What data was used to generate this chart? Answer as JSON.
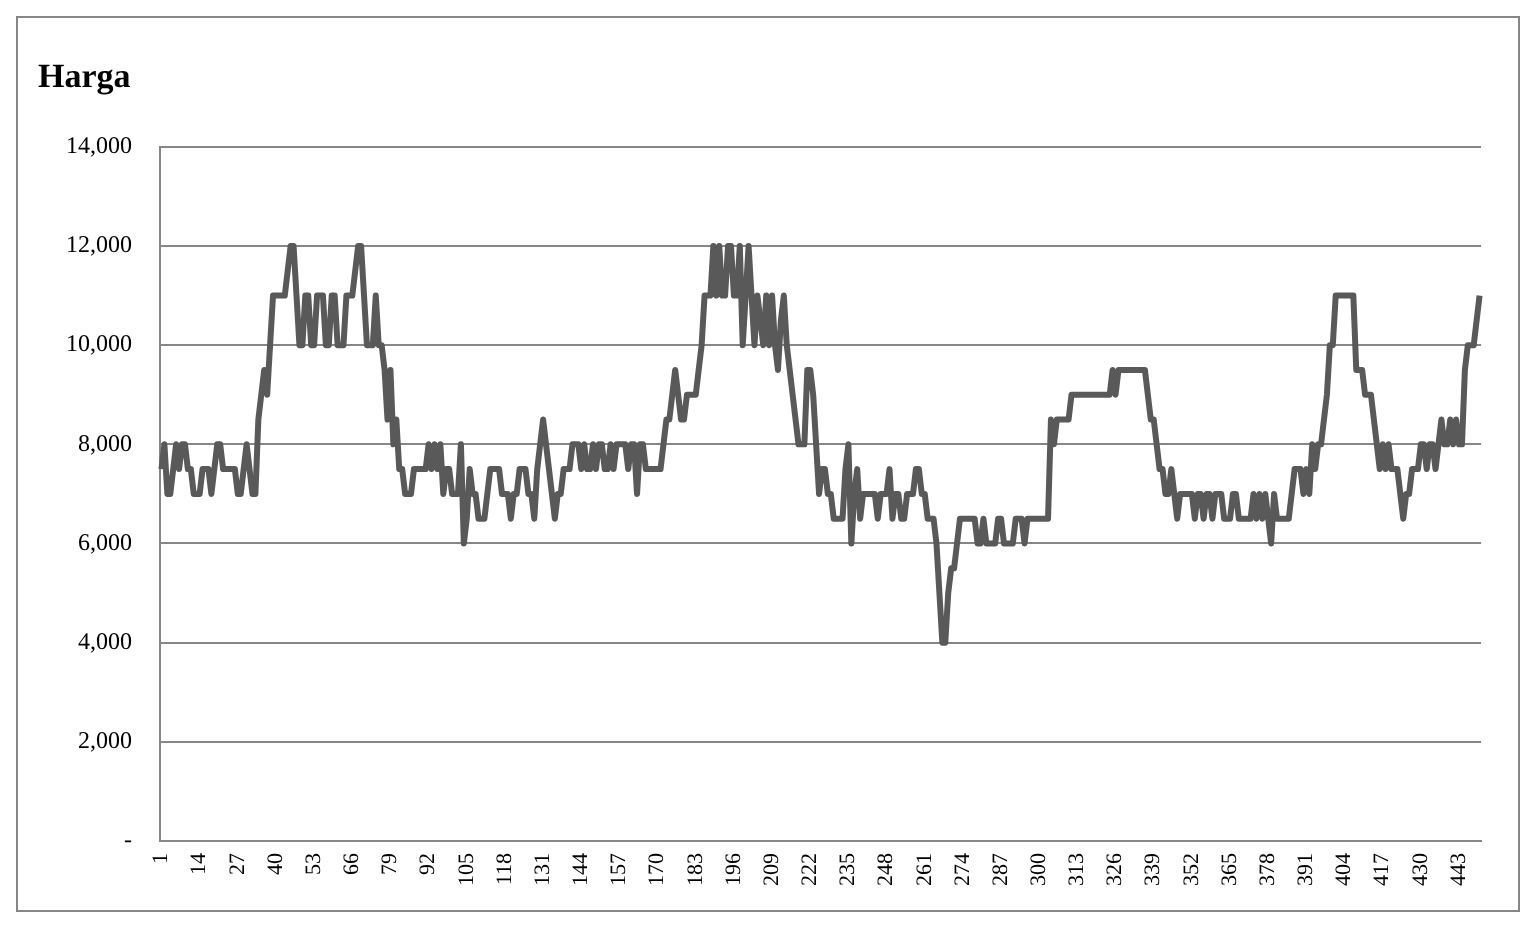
{
  "chart_data": {
    "type": "line",
    "title": "Harga",
    "categories": [
      "1",
      null,
      null,
      null,
      null,
      null,
      null,
      null,
      null,
      null,
      null,
      null,
      null,
      "14",
      null,
      null,
      null,
      null,
      null,
      null,
      null,
      null,
      null,
      null,
      null,
      null,
      "27",
      null,
      null,
      null,
      null,
      null,
      null,
      null,
      null,
      null,
      null,
      null,
      null,
      "40",
      null,
      null,
      null,
      null,
      null,
      null,
      null,
      null,
      null,
      null,
      null,
      null,
      "53",
      null,
      null,
      null,
      null,
      null,
      null,
      null,
      null,
      null,
      null,
      null,
      null,
      "66",
      null,
      null,
      null,
      null,
      null,
      null,
      null,
      null,
      null,
      null,
      null,
      null,
      "79",
      null,
      null,
      null,
      null,
      null,
      null,
      null,
      null,
      null,
      null,
      null,
      null,
      "92",
      null,
      null,
      null,
      null,
      null,
      null,
      null,
      null,
      null,
      null,
      null,
      null,
      "105",
      null,
      null,
      null,
      null,
      null,
      null,
      null,
      null,
      null,
      null,
      null,
      null,
      "118",
      null,
      null,
      null,
      null,
      null,
      null,
      null,
      null,
      null,
      null,
      null,
      null,
      "131",
      null,
      null,
      null,
      null,
      null,
      null,
      null,
      null,
      null,
      null,
      null,
      null,
      "144",
      null,
      null,
      null,
      null,
      null,
      null,
      null,
      null,
      null,
      null,
      null,
      null,
      "157",
      null,
      null,
      null,
      null,
      null,
      null,
      null,
      null,
      null,
      null,
      null,
      null,
      "170",
      null,
      null,
      null,
      null,
      null,
      null,
      null,
      null,
      null,
      null,
      null,
      null,
      "183",
      null,
      null,
      null,
      null,
      null,
      null,
      null,
      null,
      null,
      null,
      null,
      null,
      "196",
      null,
      null,
      null,
      null,
      null,
      null,
      null,
      null,
      null,
      null,
      null,
      null,
      "209",
      null,
      null,
      null,
      null,
      null,
      null,
      null,
      null,
      null,
      null,
      null,
      null,
      "222",
      null,
      null,
      null,
      null,
      null,
      null,
      null,
      null,
      null,
      null,
      null,
      null,
      "235",
      null,
      null,
      null,
      null,
      null,
      null,
      null,
      null,
      null,
      null,
      null,
      null,
      "248",
      null,
      null,
      null,
      null,
      null,
      null,
      null,
      null,
      null,
      null,
      null,
      null,
      "261",
      null,
      null,
      null,
      null,
      null,
      null,
      null,
      null,
      null,
      null,
      null,
      null,
      "274",
      null,
      null,
      null,
      null,
      null,
      null,
      null,
      null,
      null,
      null,
      null,
      null,
      "287",
      null,
      null,
      null,
      null,
      null,
      null,
      null,
      null,
      null,
      null,
      null,
      null,
      "300",
      null,
      null,
      null,
      null,
      null,
      null,
      null,
      null,
      null,
      null,
      null,
      null,
      "313",
      null,
      null,
      null,
      null,
      null,
      null,
      null,
      null,
      null,
      null,
      null,
      null,
      "326",
      null,
      null,
      null,
      null,
      null,
      null,
      null,
      null,
      null,
      null,
      null,
      null,
      "339",
      null,
      null,
      null,
      null,
      null,
      null,
      null,
      null,
      null,
      null,
      null,
      null,
      "352",
      null,
      null,
      null,
      null,
      null,
      null,
      null,
      null,
      null,
      null,
      null,
      null,
      "365",
      null,
      null,
      null,
      null,
      null,
      null,
      null,
      null,
      null,
      null,
      null,
      null,
      "378",
      null,
      null,
      null,
      null,
      null,
      null,
      null,
      null,
      null,
      null,
      null,
      null,
      "391",
      null,
      null,
      null,
      null,
      null,
      null,
      null,
      null,
      null,
      null,
      null,
      null,
      "404",
      null,
      null,
      null,
      null,
      null,
      null,
      null,
      null,
      null,
      null,
      null,
      null,
      "417",
      null,
      null,
      null,
      null,
      null,
      null,
      null,
      null,
      null,
      null,
      null,
      null,
      "430",
      null,
      null,
      null,
      null,
      null,
      null,
      null,
      null,
      null,
      null,
      null,
      null,
      "443",
      null,
      null,
      null,
      null,
      null,
      null,
      null
    ],
    "series": [
      {
        "color": "#595959",
        "values": [
          7500,
          8000,
          7000,
          7000,
          7500,
          8000,
          7500,
          8000,
          8000,
          7500,
          7500,
          7000,
          7000,
          7000,
          7500,
          7500,
          7500,
          7000,
          7500,
          8000,
          8000,
          7500,
          7500,
          7500,
          7500,
          7500,
          7000,
          7000,
          7500,
          8000,
          7500,
          7000,
          7000,
          8500,
          9000,
          9500,
          9000,
          10000,
          11000,
          11000,
          11000,
          11000,
          11000,
          11500,
          12000,
          12000,
          11000,
          10000,
          10000,
          11000,
          11000,
          10000,
          10000,
          11000,
          11000,
          11000,
          10000,
          10000,
          11000,
          11000,
          10000,
          10000,
          10000,
          11000,
          11000,
          11000,
          11500,
          12000,
          12000,
          11000,
          10000,
          10000,
          10000,
          11000,
          10000,
          10000,
          9500,
          8500,
          9500,
          8000,
          8500,
          7500,
          7500,
          7000,
          7000,
          7000,
          7500,
          7500,
          7500,
          7500,
          7500,
          8000,
          7500,
          8000,
          7500,
          8000,
          7000,
          7500,
          7500,
          7000,
          7000,
          7000,
          8000,
          6000,
          6500,
          7500,
          7000,
          7000,
          6500,
          6500,
          6500,
          7000,
          7500,
          7500,
          7500,
          7500,
          7000,
          7000,
          7000,
          6500,
          7000,
          7000,
          7500,
          7500,
          7500,
          7000,
          7000,
          6500,
          7500,
          8000,
          8500,
          8000,
          7500,
          7000,
          6500,
          7000,
          7000,
          7500,
          7500,
          7500,
          8000,
          8000,
          8000,
          7500,
          8000,
          7500,
          7500,
          8000,
          7500,
          8000,
          8000,
          7500,
          7500,
          8000,
          7500,
          8000,
          8000,
          8000,
          8000,
          7500,
          8000,
          8000,
          7000,
          8000,
          8000,
          7500,
          7500,
          7500,
          7500,
          7500,
          7500,
          8000,
          8500,
          8500,
          9000,
          9500,
          9000,
          8500,
          8500,
          9000,
          9000,
          9000,
          9000,
          9500,
          10000,
          11000,
          11000,
          11000,
          12000,
          11000,
          12000,
          11000,
          11000,
          12000,
          12000,
          11000,
          11000,
          12000,
          10000,
          11000,
          12000,
          11000,
          10000,
          11000,
          10500,
          10000,
          11000,
          10000,
          11000,
          10000,
          9500,
          10500,
          11000,
          10000,
          9500,
          9000,
          8500,
          8000,
          8000,
          8000,
          9500,
          9500,
          9000,
          8000,
          7000,
          7500,
          7500,
          7000,
          7000,
          6500,
          6500,
          6500,
          6500,
          7500,
          8000,
          6000,
          7000,
          7500,
          6500,
          7000,
          7000,
          7000,
          7000,
          7000,
          6500,
          7000,
          7000,
          7000,
          7500,
          6500,
          7000,
          7000,
          6500,
          6500,
          7000,
          7000,
          7000,
          7500,
          7500,
          7000,
          7000,
          6500,
          6500,
          6500,
          6000,
          5000,
          4000,
          4000,
          5000,
          5500,
          5500,
          6000,
          6500,
          6500,
          6500,
          6500,
          6500,
          6500,
          6000,
          6000,
          6500,
          6000,
          6000,
          6000,
          6000,
          6500,
          6500,
          6000,
          6000,
          6000,
          6000,
          6500,
          6500,
          6500,
          6000,
          6500,
          6500,
          6500,
          6500,
          6500,
          6500,
          6500,
          6500,
          8500,
          8000,
          8500,
          8500,
          8500,
          8500,
          8500,
          9000,
          9000,
          9000,
          9000,
          9000,
          9000,
          9000,
          9000,
          9000,
          9000,
          9000,
          9000,
          9000,
          9000,
          9500,
          9000,
          9500,
          9500,
          9500,
          9500,
          9500,
          9500,
          9500,
          9500,
          9500,
          9500,
          9000,
          8500,
          8500,
          8000,
          7500,
          7500,
          7000,
          7000,
          7500,
          7000,
          6500,
          7000,
          7000,
          7000,
          7000,
          7000,
          6500,
          7000,
          7000,
          6500,
          7000,
          7000,
          6500,
          7000,
          7000,
          7000,
          6500,
          6500,
          6500,
          7000,
          7000,
          6500,
          6500,
          6500,
          6500,
          6500,
          7000,
          6500,
          7000,
          6500,
          7000,
          6500,
          6000,
          7000,
          6500,
          6500,
          6500,
          6500,
          6500,
          7000,
          7500,
          7500,
          7500,
          7000,
          7500,
          7000,
          8000,
          7500,
          8000,
          8000,
          8500,
          9000,
          10000,
          10000,
          11000,
          11000,
          11000,
          11000,
          11000,
          11000,
          11000,
          9500,
          9500,
          9500,
          9000,
          9000,
          9000,
          8500,
          8000,
          7500,
          8000,
          7500,
          8000,
          7500,
          7500,
          7500,
          7000,
          6500,
          7000,
          7000,
          7500,
          7500,
          7500,
          8000,
          8000,
          7500,
          8000,
          8000,
          7500,
          8000,
          8500,
          8000,
          8000,
          8500,
          8000,
          8500,
          8000,
          8000,
          9500,
          10000,
          10000,
          10000,
          10500,
          11000
        ]
      }
    ],
    "ylim": [
      0,
      14000
    ],
    "yticks": [
      {
        "value": 0,
        "label": "-"
      },
      {
        "value": 2000,
        "label": "2,000"
      },
      {
        "value": 4000,
        "label": "4,000"
      },
      {
        "value": 6000,
        "label": "6,000"
      },
      {
        "value": 8000,
        "label": "8,000"
      },
      {
        "value": 10000,
        "label": "10,000"
      },
      {
        "value": 12000,
        "label": "12,000"
      },
      {
        "value": 14000,
        "label": "14,000"
      }
    ],
    "grid": "y",
    "legend": false,
    "marker": "none",
    "line_style": "solid"
  }
}
